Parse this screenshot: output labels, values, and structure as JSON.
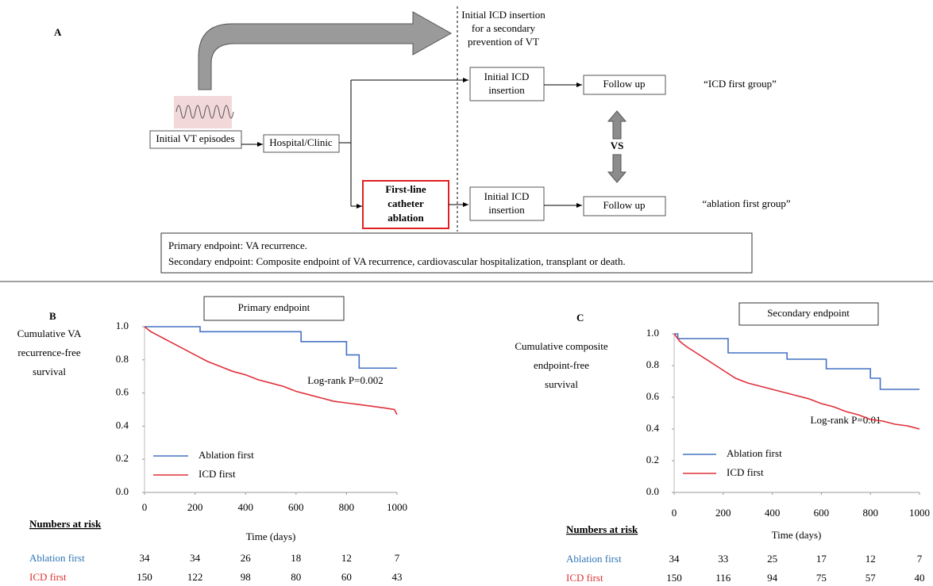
{
  "panel_a": {
    "label": "A",
    "dashed_note": [
      "Initial ICD insertion",
      "for a secondary",
      "prevention of VT"
    ],
    "initial_vt": "Initial VT episodes",
    "hospital": "Hospital/Clinic",
    "icd_insertion_top": [
      "Initial ICD",
      "insertion"
    ],
    "follow_up_top": "Follow up",
    "icd_group": "“ICD first group”",
    "vs": "VS",
    "ablation": [
      "First-line",
      "catheter",
      "ablation"
    ],
    "icd_insertion_bottom": [
      "Initial ICD",
      "insertion"
    ],
    "follow_up_bottom": "Follow up",
    "ablation_group": "“ablation first group”",
    "endpoints": [
      "Primary endpoint: VA recurrence.",
      "Secondary endpoint: Composite endpoint of VA recurrence, cardiovascular hospitalization, transplant or death."
    ]
  },
  "chart_data": [
    {
      "type": "line",
      "panel_label": "B",
      "title": "Primary endpoint",
      "ylabel": [
        "Cumulative VA",
        "recurrence-free",
        "survival"
      ],
      "xlabel": "Time (days)",
      "annotation": "Log-rank P=0.002",
      "xlim": [
        0,
        1000
      ],
      "ylim": [
        0,
        1
      ],
      "xticks": [
        0,
        200,
        400,
        600,
        800,
        1000
      ],
      "yticks": [
        {
          "value": 0,
          "label": "0.0"
        },
        {
          "value": 0.2,
          "label": "0.2"
        },
        {
          "value": 0.4,
          "label": "0.4"
        },
        {
          "value": 0.6,
          "label": "0.6"
        },
        {
          "value": 0.8,
          "label": "0.8"
        },
        {
          "value": 1,
          "label": "1.0"
        }
      ],
      "series": [
        {
          "name": "Ablation first",
          "color": "#4472c4",
          "x": [
            0,
            220,
            220,
            620,
            620,
            800,
            800,
            850,
            850,
            1000
          ],
          "values": [
            1,
            1,
            0.97,
            0.97,
            0.91,
            0.91,
            0.83,
            0.83,
            0.75,
            0.75
          ]
        },
        {
          "name": "ICD first",
          "color": "#e0303a",
          "x": [
            0,
            25,
            50,
            75,
            100,
            150,
            200,
            250,
            300,
            350,
            400,
            450,
            500,
            550,
            600,
            650,
            700,
            750,
            800,
            850,
            900,
            950,
            990,
            1000
          ],
          "values": [
            1,
            0.97,
            0.95,
            0.93,
            0.91,
            0.87,
            0.83,
            0.79,
            0.76,
            0.73,
            0.71,
            0.68,
            0.66,
            0.64,
            0.61,
            0.59,
            0.57,
            0.55,
            0.54,
            0.53,
            0.52,
            0.51,
            0.5,
            0.47
          ]
        }
      ],
      "risk_table": {
        "title": "Numbers at risk",
        "rows": [
          {
            "name": "Ablation first",
            "color": "#2e75b6",
            "values": [
              34,
              34,
              26,
              18,
              12,
              7
            ]
          },
          {
            "name": "ICD first",
            "color": "#e03030",
            "values": [
              150,
              122,
              98,
              80,
              60,
              43
            ]
          }
        ]
      }
    },
    {
      "type": "line",
      "panel_label": "C",
      "title": "Secondary endpoint",
      "ylabel": [
        "Cumulative composite",
        "endpoint-free",
        "survival"
      ],
      "xlabel": "Time (days)",
      "annotation": "Log-rank P=0.01",
      "xlim": [
        0,
        1000
      ],
      "ylim": [
        0,
        1
      ],
      "xticks": [
        0,
        200,
        400,
        600,
        800,
        1000
      ],
      "yticks": [
        {
          "value": 0,
          "label": "0.0"
        },
        {
          "value": 0.2,
          "label": "0.2"
        },
        {
          "value": 0.4,
          "label": "0.4"
        },
        {
          "value": 0.6,
          "label": "0.6"
        },
        {
          "value": 0.8,
          "label": "0.8"
        },
        {
          "value": 1,
          "label": "1.0"
        }
      ],
      "series": [
        {
          "name": "Ablation first",
          "color": "#4472c4",
          "x": [
            0,
            15,
            15,
            220,
            220,
            460,
            460,
            620,
            620,
            800,
            800,
            840,
            840,
            1000
          ],
          "values": [
            1,
            1,
            0.97,
            0.97,
            0.88,
            0.88,
            0.84,
            0.84,
            0.78,
            0.78,
            0.72,
            0.72,
            0.65,
            0.65
          ]
        },
        {
          "name": "ICD first",
          "color": "#e0303a",
          "x": [
            0,
            25,
            50,
            100,
            150,
            200,
            250,
            300,
            350,
            400,
            450,
            500,
            550,
            600,
            650,
            700,
            750,
            800,
            850,
            900,
            950,
            1000
          ],
          "values": [
            1,
            0.95,
            0.92,
            0.87,
            0.82,
            0.77,
            0.72,
            0.69,
            0.67,
            0.65,
            0.63,
            0.61,
            0.59,
            0.56,
            0.54,
            0.51,
            0.49,
            0.46,
            0.45,
            0.43,
            0.42,
            0.4
          ]
        }
      ],
      "risk_table": {
        "title": "Numbers at risk",
        "rows": [
          {
            "name": "Ablation first",
            "color": "#2e75b6",
            "values": [
              34,
              33,
              25,
              17,
              12,
              7
            ]
          },
          {
            "name": "ICD first",
            "color": "#e03030",
            "values": [
              150,
              116,
              94,
              75,
              57,
              40
            ]
          }
        ]
      }
    }
  ]
}
